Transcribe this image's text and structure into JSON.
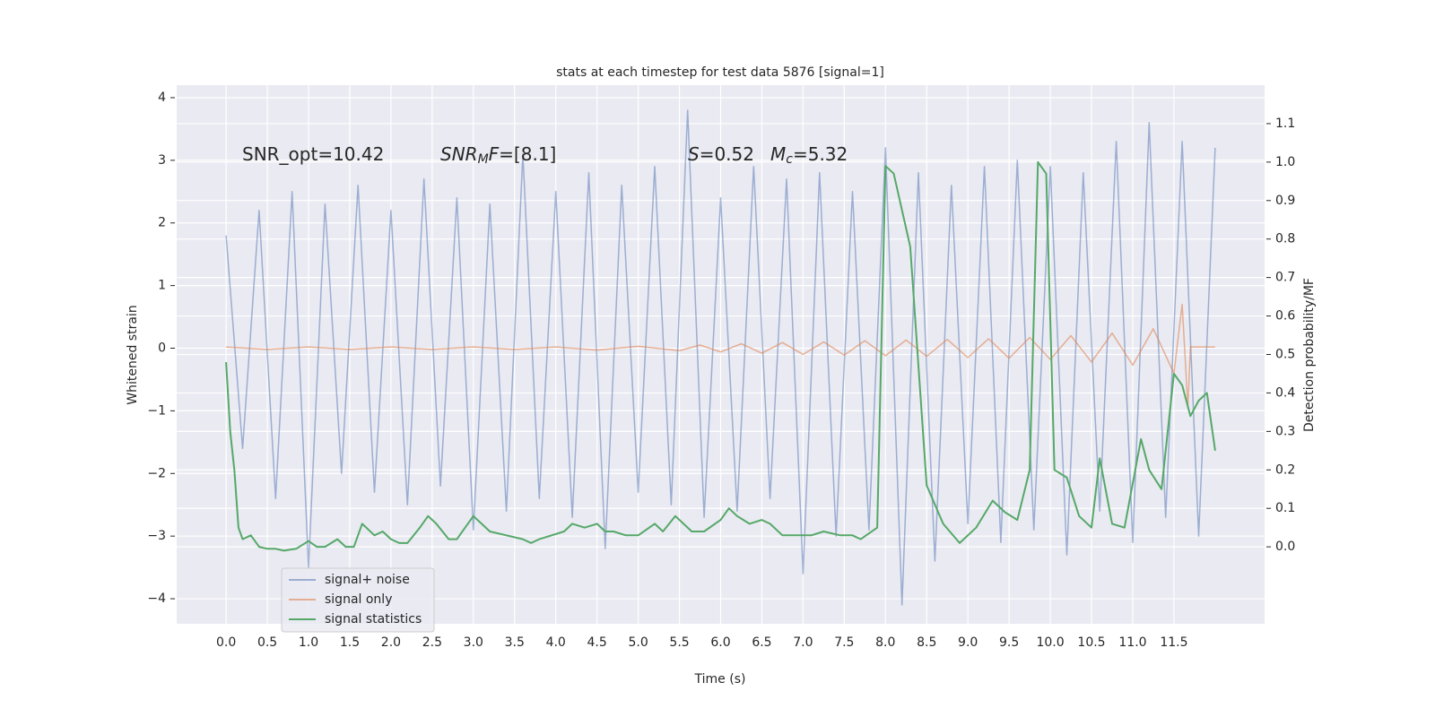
{
  "chart_data": {
    "type": "line",
    "title": "stats at each timestep for test data 5876 [signal=1]",
    "xlabel": "Time (s)",
    "ylabel": "Whitened strain",
    "y2label": "Detection probability/MF",
    "annotations": [
      [
        {
          "text": "SNR_opt=10.42"
        }
      ],
      [
        {
          "text": "SNR",
          "style": "italic"
        },
        {
          "text": "M",
          "style": "sub-italic"
        },
        {
          "text": "F",
          "style": "italic"
        },
        {
          "text": "=[8.1]"
        }
      ],
      [
        {
          "text": "S",
          "style": "italic"
        },
        {
          "text": "=0.52"
        }
      ],
      [
        {
          "text": "M",
          "style": "italic"
        },
        {
          "text": "c",
          "style": "sub-italic"
        },
        {
          "text": "=5.32"
        }
      ]
    ],
    "xlim": [
      -0.6,
      12.6
    ],
    "xticks": [
      {
        "value": 0,
        "label": "0.0"
      },
      0.5,
      {
        "value": 1,
        "label": "1.0"
      },
      1.5,
      {
        "value": 2,
        "label": "2.0"
      },
      2.5,
      {
        "value": 3,
        "label": "3.0"
      },
      3.5,
      {
        "value": 4,
        "label": "4.0"
      },
      4.5,
      {
        "value": 5,
        "label": "5.0"
      },
      5.5,
      {
        "value": 6,
        "label": "6.0"
      },
      6.5,
      {
        "value": 7,
        "label": "7.0"
      },
      7.5,
      {
        "value": 8,
        "label": "8.0"
      },
      8.5,
      {
        "value": 9,
        "label": "9.0"
      },
      9.5,
      {
        "value": 10,
        "label": "10.0"
      },
      10.5,
      {
        "value": 11,
        "label": "11.0"
      },
      11.5
    ],
    "ylim": [
      -4.4,
      4.2
    ],
    "yticks": [
      {
        "value": -4,
        "label": "−4"
      },
      {
        "value": -3,
        "label": "−3"
      },
      {
        "value": -2,
        "label": "−2"
      },
      {
        "value": -1,
        "label": "−1"
      },
      0,
      1,
      2,
      3,
      4
    ],
    "y2lim": [
      -0.2,
      1.2
    ],
    "y2ticks": [
      {
        "value": 0,
        "label": "0.0"
      },
      0.1,
      0.2,
      0.3,
      0.4,
      0.5,
      0.6,
      0.7,
      0.8,
      0.9,
      {
        "value": 1,
        "label": "1.0"
      },
      1.1
    ],
    "grid": true,
    "legend": "lower left",
    "series": [
      {
        "name": "signal+ noise",
        "color": "#4c72b0",
        "alpha": 0.5,
        "x": [
          0,
          0.2,
          0.4,
          0.6,
          0.8,
          1,
          1.2,
          1.4,
          1.6,
          1.8,
          2,
          2.2,
          2.4,
          2.6,
          2.8,
          3,
          3.2,
          3.4,
          3.6,
          3.8,
          4,
          4.2,
          4.4,
          4.6,
          4.8,
          5,
          5.2,
          5.4,
          5.6,
          5.8,
          6,
          6.2,
          6.4,
          6.6,
          6.8,
          7,
          7.2,
          7.4,
          7.6,
          7.8,
          8,
          8.2,
          8.4,
          8.6,
          8.8,
          9,
          9.2,
          9.4,
          9.6,
          9.8,
          10,
          10.2,
          10.4,
          10.6,
          10.8,
          11,
          11.2,
          11.4,
          11.6,
          11.8,
          12
        ],
        "values": [
          1.8,
          -1.6,
          2.2,
          -2.4,
          2.5,
          -3.5,
          2.3,
          -2.0,
          2.6,
          -2.3,
          2.2,
          -2.5,
          2.7,
          -2.2,
          2.4,
          -2.9,
          2.3,
          -2.6,
          3.1,
          -2.4,
          2.5,
          -2.7,
          2.8,
          -3.2,
          2.6,
          -2.3,
          2.9,
          -2.5,
          3.8,
          -2.7,
          2.4,
          -2.6,
          2.9,
          -2.4,
          2.7,
          -3.6,
          2.8,
          -3.0,
          2.5,
          -2.9,
          3.2,
          -4.1,
          2.8,
          -3.4,
          2.6,
          -2.8,
          2.9,
          -3.1,
          3.0,
          -2.9,
          2.9,
          -3.3,
          2.8,
          -2.6,
          3.3,
          -3.1,
          3.6,
          -2.7,
          3.3,
          -3.0,
          3.2
        ]
      },
      {
        "name": "signal only",
        "color": "#dd8452",
        "alpha": 0.6,
        "x": [
          0,
          0.5,
          1,
          1.5,
          2,
          2.5,
          3,
          3.5,
          4,
          4.5,
          5,
          5.5,
          5.75,
          6,
          6.25,
          6.5,
          6.75,
          7,
          7.25,
          7.5,
          7.75,
          8,
          8.25,
          8.5,
          8.75,
          9,
          9.25,
          9.5,
          9.75,
          10,
          10.25,
          10.5,
          10.75,
          11,
          11.25,
          11.5,
          11.6,
          11.67,
          11.7,
          12
        ],
        "values": [
          0.02,
          -0.02,
          0.02,
          -0.02,
          0.02,
          -0.02,
          0.02,
          -0.02,
          0.02,
          -0.03,
          0.03,
          -0.04,
          0.05,
          -0.06,
          0.07,
          -0.08,
          0.09,
          -0.1,
          0.1,
          -0.11,
          0.12,
          -0.12,
          0.13,
          -0.13,
          0.14,
          -0.15,
          0.15,
          -0.16,
          0.17,
          -0.18,
          0.2,
          -0.22,
          0.24,
          -0.27,
          0.31,
          -0.4,
          0.7,
          -0.95,
          0.02,
          0.02
        ]
      },
      {
        "name": "signal statistics",
        "color": "#55a868",
        "alpha": 1,
        "axis": "y2",
        "x": [
          0,
          0.05,
          0.1,
          0.15,
          0.2,
          0.3,
          0.4,
          0.5,
          0.6,
          0.7,
          0.85,
          1,
          1.1,
          1.2,
          1.35,
          1.45,
          1.55,
          1.65,
          1.8,
          1.9,
          2,
          2.1,
          2.2,
          2.35,
          2.45,
          2.55,
          2.7,
          2.8,
          2.9,
          3,
          3.1,
          3.2,
          3.4,
          3.6,
          3.7,
          3.8,
          3.95,
          4.1,
          4.2,
          4.35,
          4.5,
          4.6,
          4.7,
          4.85,
          5,
          5.2,
          5.3,
          5.45,
          5.55,
          5.65,
          5.8,
          6,
          6.1,
          6.2,
          6.35,
          6.5,
          6.6,
          6.75,
          6.9,
          7.1,
          7.25,
          7.45,
          7.6,
          7.7,
          7.9,
          8,
          8.1,
          8.3,
          8.5,
          8.7,
          8.9,
          9.1,
          9.3,
          9.45,
          9.6,
          9.75,
          9.85,
          9.95,
          10.05,
          10.2,
          10.35,
          10.5,
          10.6,
          10.75,
          10.9,
          11.1,
          11.2,
          11.35,
          11.5,
          11.6,
          11.7,
          11.8,
          11.9,
          12
        ],
        "values": [
          0.48,
          0.3,
          0.2,
          0.05,
          0.02,
          0.03,
          0.0,
          -0.005,
          -0.005,
          -0.01,
          -0.005,
          0.015,
          0.0,
          0.0,
          0.02,
          0.0,
          0.0,
          0.06,
          0.03,
          0.04,
          0.02,
          0.01,
          0.01,
          0.05,
          0.08,
          0.06,
          0.02,
          0.02,
          0.05,
          0.08,
          0.06,
          0.04,
          0.03,
          0.02,
          0.01,
          0.02,
          0.03,
          0.04,
          0.06,
          0.05,
          0.06,
          0.04,
          0.04,
          0.03,
          0.03,
          0.06,
          0.04,
          0.08,
          0.06,
          0.04,
          0.04,
          0.07,
          0.1,
          0.08,
          0.06,
          0.07,
          0.06,
          0.03,
          0.03,
          0.03,
          0.04,
          0.03,
          0.03,
          0.02,
          0.05,
          0.99,
          0.97,
          0.78,
          0.16,
          0.06,
          0.01,
          0.05,
          0.12,
          0.09,
          0.07,
          0.2,
          1.0,
          0.97,
          0.2,
          0.18,
          0.08,
          0.05,
          0.23,
          0.06,
          0.05,
          0.28,
          0.2,
          0.15,
          0.45,
          0.42,
          0.34,
          0.38,
          0.4,
          0.25
        ]
      }
    ]
  }
}
